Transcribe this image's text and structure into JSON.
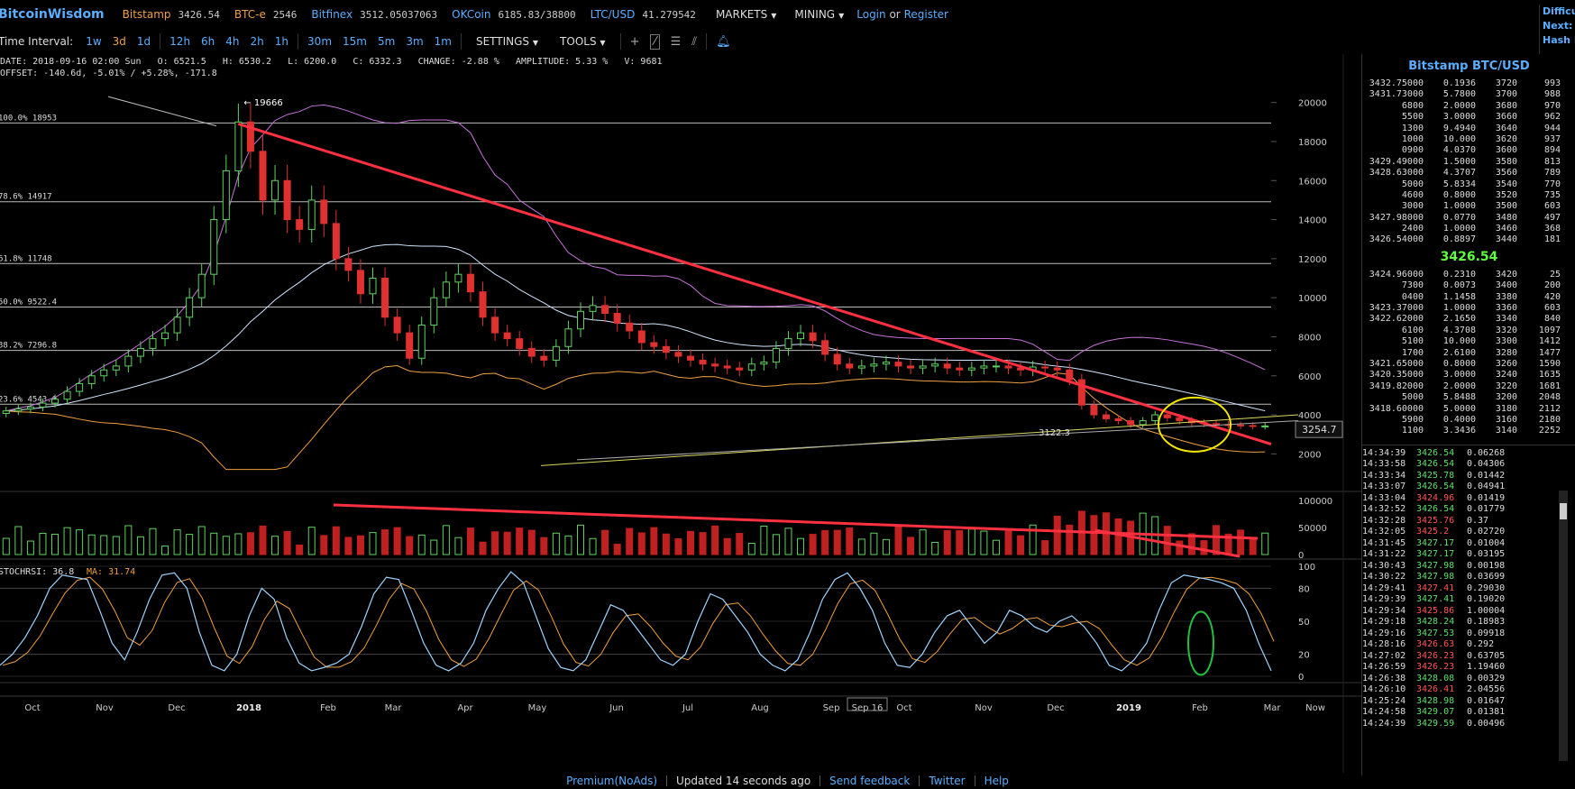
{
  "header": {
    "logo": "BitcoinWisdom",
    "tickers": [
      {
        "exchange": "Bitstamp",
        "price": "3426.54",
        "color": "orange"
      },
      {
        "exchange": "BTC-e",
        "price": "2546",
        "color": "orange"
      },
      {
        "exchange": "Bitfinex",
        "price": "3512.05037063",
        "color": "blue"
      },
      {
        "exchange": "OKCoin",
        "price": "6185.83/38800",
        "color": "blue"
      },
      {
        "exchange": "LTC/USD",
        "price": "41.279542",
        "color": "blue"
      }
    ],
    "markets_label": "MARKETS",
    "mining_label": "MINING",
    "login_label": "Login",
    "or_label": "or",
    "register_label": "Register",
    "side_labels": [
      "Difficul",
      "Next:",
      "Hash R"
    ]
  },
  "toolbar": {
    "time_interval_label": "Time Interval:",
    "intervals": [
      "1w",
      "3d",
      "1d",
      "12h",
      "6h",
      "4h",
      "2h",
      "1h",
      "30m",
      "15m",
      "5m",
      "3m",
      "1m"
    ],
    "active_interval": "3d",
    "settings_label": "SETTINGS",
    "tools_label": "TOOLS"
  },
  "info": {
    "line1": "DATE: 2018-09-16 02:00 Sun   O: 6521.5   H: 6530.2   L: 6200.0   C: 6332.3   CHANGE: -2.88 %   AMPLITUDE: 5.33 %   V: 9681",
    "line2": "OFFSET: -140.6d, -5.01% / +5.28%, -171.8"
  },
  "chart_data": {
    "type": "candlestick",
    "title": "Bitstamp BTC/USD 3d",
    "x_tick_labels": [
      "Oct",
      "Nov",
      "Dec",
      "2018",
      "Feb",
      "Mar",
      "Apr",
      "May",
      "Jun",
      "Jul",
      "Aug",
      "Sep",
      "Sep 16",
      "Oct",
      "Nov",
      "Dec",
      "2019",
      "Feb",
      "Mar",
      "Now"
    ],
    "price_axis": {
      "ticks": [
        20000,
        18000,
        16000,
        14000,
        12000,
        10000,
        8000,
        6000,
        4000,
        2000
      ],
      "ylim": [
        1000,
        21000
      ]
    },
    "fib_levels": [
      {
        "label": "100.0% 18953",
        "value": 18953
      },
      {
        "label": "78.6% 14917",
        "value": 14917
      },
      {
        "label": "61.8% 11748",
        "value": 11748
      },
      {
        "label": "50.0% 9522.4",
        "value": 9522.4
      },
      {
        "label": "38.2% 7296.8",
        "value": 7296.8
      },
      {
        "label": "23.6% 4543.0",
        "value": 4543.0
      }
    ],
    "annotations": {
      "high_label": "← 19666",
      "low_label": "3122.3",
      "current_price_label": "3254.7"
    },
    "close_series": [
      4200,
      4300,
      4400,
      4600,
      4800,
      5200,
      5600,
      6000,
      6300,
      6500,
      7000,
      7400,
      7900,
      8200,
      9000,
      10000,
      11200,
      14000,
      16500,
      19000,
      17500,
      15000,
      16000,
      14000,
      13500,
      15000,
      13800,
      12000,
      11400,
      10200,
      11000,
      9000,
      8200,
      6900,
      8600,
      10000,
      10800,
      11200,
      10300,
      9000,
      8200,
      7900,
      7400,
      7000,
      6800,
      7500,
      8400,
      9300,
      9600,
      9200,
      8700,
      8300,
      7700,
      7500,
      7200,
      7000,
      6800,
      6600,
      6500,
      6400,
      6300,
      6600,
      6700,
      7400,
      7900,
      8200,
      7800,
      7100,
      6600,
      6400,
      6500,
      6600,
      6700,
      6500,
      6400,
      6500,
      6600,
      6400,
      6300,
      6400,
      6500,
      6500,
      6400,
      6300,
      6450,
      6400,
      6300,
      5800,
      4500,
      4000,
      3800,
      3700,
      3500,
      3700,
      4000,
      3850,
      3700,
      3600,
      3550,
      3500,
      3480,
      3450,
      3420,
      3430
    ],
    "volume_axis": {
      "ticks": [
        100000,
        50000,
        0
      ]
    },
    "stochrsi": {
      "label": "STOCHRSI: 36.8",
      "ma_label": "MA: 31.74",
      "ticks": [
        100,
        80,
        50,
        20,
        0
      ],
      "values": [
        10,
        20,
        35,
        55,
        80,
        92,
        90,
        88,
        60,
        30,
        15,
        40,
        70,
        92,
        94,
        80,
        40,
        10,
        5,
        20,
        55,
        80,
        70,
        35,
        12,
        5,
        8,
        12,
        20,
        45,
        75,
        90,
        88,
        60,
        30,
        10,
        5,
        12,
        30,
        60,
        80,
        95,
        85,
        55,
        25,
        8,
        5,
        15,
        40,
        65,
        60,
        45,
        30,
        15,
        10,
        20,
        50,
        75,
        70,
        55,
        40,
        20,
        10,
        5,
        15,
        40,
        70,
        88,
        94,
        80,
        60,
        30,
        10,
        8,
        20,
        40,
        55,
        60,
        45,
        30,
        40,
        60,
        55,
        45,
        40,
        50,
        55,
        45,
        30,
        10,
        5,
        15,
        30,
        60,
        85,
        92,
        90,
        88,
        85,
        80,
        60,
        30,
        5
      ]
    }
  },
  "orderbook": {
    "title": "Bitstamp BTC/USD",
    "asks": [
      [
        "3432.75000",
        "0.1936",
        "3720",
        "993"
      ],
      [
        "3431.73000",
        "5.7800",
        "3700",
        "988"
      ],
      [
        "6800",
        "2.0000",
        "3680",
        "970"
      ],
      [
        "5500",
        "3.0000",
        "3660",
        "962"
      ],
      [
        "1300",
        "9.4940",
        "3640",
        "944"
      ],
      [
        "1000",
        "10.000",
        "3620",
        "937"
      ],
      [
        "0900",
        "4.0370",
        "3600",
        "894"
      ],
      [
        "3429.49000",
        "1.5000",
        "3580",
        "813"
      ],
      [
        "3428.63000",
        "4.3707",
        "3560",
        "789"
      ],
      [
        "5000",
        "5.8334",
        "3540",
        "770"
      ],
      [
        "4600",
        "0.8000",
        "3520",
        "735"
      ],
      [
        "3000",
        "1.0000",
        "3500",
        "603"
      ],
      [
        "3427.98000",
        "0.0770",
        "3480",
        "497"
      ],
      [
        "2400",
        "1.0000",
        "3460",
        "368"
      ],
      [
        "3426.54000",
        "0.8897",
        "3440",
        "181"
      ]
    ],
    "mid_price": "3426.54",
    "bids": [
      [
        "3424.96000",
        "0.2310",
        "3420",
        "25"
      ],
      [
        "7300",
        "0.0073",
        "3400",
        "200"
      ],
      [
        "0400",
        "1.1458",
        "3380",
        "420"
      ],
      [
        "3423.37000",
        "1.0000",
        "3360",
        "603"
      ],
      [
        "3422.62000",
        "2.1650",
        "3340",
        "840"
      ],
      [
        "6100",
        "4.3708",
        "3320",
        "1097"
      ],
      [
        "5100",
        "10.000",
        "3300",
        "1412"
      ],
      [
        "1700",
        "2.6100",
        "3280",
        "1477"
      ],
      [
        "3421.65000",
        "0.8000",
        "3260",
        "1590"
      ],
      [
        "3420.35000",
        "3.0000",
        "3240",
        "1635"
      ],
      [
        "3419.82000",
        "2.0000",
        "3220",
        "1681"
      ],
      [
        "5000",
        "5.8488",
        "3200",
        "2048"
      ],
      [
        "3418.60000",
        "5.0000",
        "3180",
        "2112"
      ],
      [
        "5900",
        "0.4000",
        "3160",
        "2180"
      ],
      [
        "1100",
        "3.3436",
        "3140",
        "2252"
      ]
    ]
  },
  "trades": [
    [
      "14:34:39",
      "3426.54",
      "0.06268",
      "up"
    ],
    [
      "14:33:58",
      "3426.54",
      "0.04306",
      "up"
    ],
    [
      "14:33:34",
      "3425.78",
      "0.01442",
      "up"
    ],
    [
      "14:33:07",
      "3426.54",
      "0.04941",
      "up"
    ],
    [
      "14:33:04",
      "3424.96",
      "0.01419",
      "dn"
    ],
    [
      "14:32:52",
      "3426.54",
      "0.01779",
      "up"
    ],
    [
      "14:32:28",
      "3425.76",
      "0.37",
      "dn"
    ],
    [
      "14:32:05",
      "3425.2",
      "0.02720",
      "dn"
    ],
    [
      "14:31:45",
      "3427.17",
      "0.01004",
      "up"
    ],
    [
      "14:31:22",
      "3427.17",
      "0.03195",
      "up"
    ],
    [
      "14:30:43",
      "3427.98",
      "0.00198",
      "up"
    ],
    [
      "14:30:22",
      "3427.98",
      "0.03699",
      "up"
    ],
    [
      "14:29:41",
      "3427.41",
      "0.29030",
      "dn"
    ],
    [
      "14:29:39",
      "3427.41",
      "0.19020",
      "up"
    ],
    [
      "14:29:34",
      "3425.86",
      "1.00004",
      "dn"
    ],
    [
      "14:29:18",
      "3428.24",
      "0.18983",
      "up"
    ],
    [
      "14:29:16",
      "3427.53",
      "0.09918",
      "up"
    ],
    [
      "14:28:16",
      "3426.63",
      "0.292",
      "dn"
    ],
    [
      "14:27:02",
      "3426.23",
      "0.63705",
      "dn"
    ],
    [
      "14:26:59",
      "3426.23",
      "1.19460",
      "dn"
    ],
    [
      "14:26:38",
      "3428.08",
      "0.00329",
      "up"
    ],
    [
      "14:26:10",
      "3426.41",
      "2.04556",
      "dn"
    ],
    [
      "14:25:24",
      "3428.98",
      "0.01647",
      "up"
    ],
    [
      "14:24:58",
      "3429.07",
      "0.01381",
      "up"
    ],
    [
      "14:24:39",
      "3429.59",
      "0.00496",
      "up"
    ]
  ],
  "footer": {
    "premium": "Premium(NoAds)",
    "updated": "Updated 14 seconds ago",
    "feedback": "Send feedback",
    "twitter": "Twitter",
    "help": "Help"
  }
}
